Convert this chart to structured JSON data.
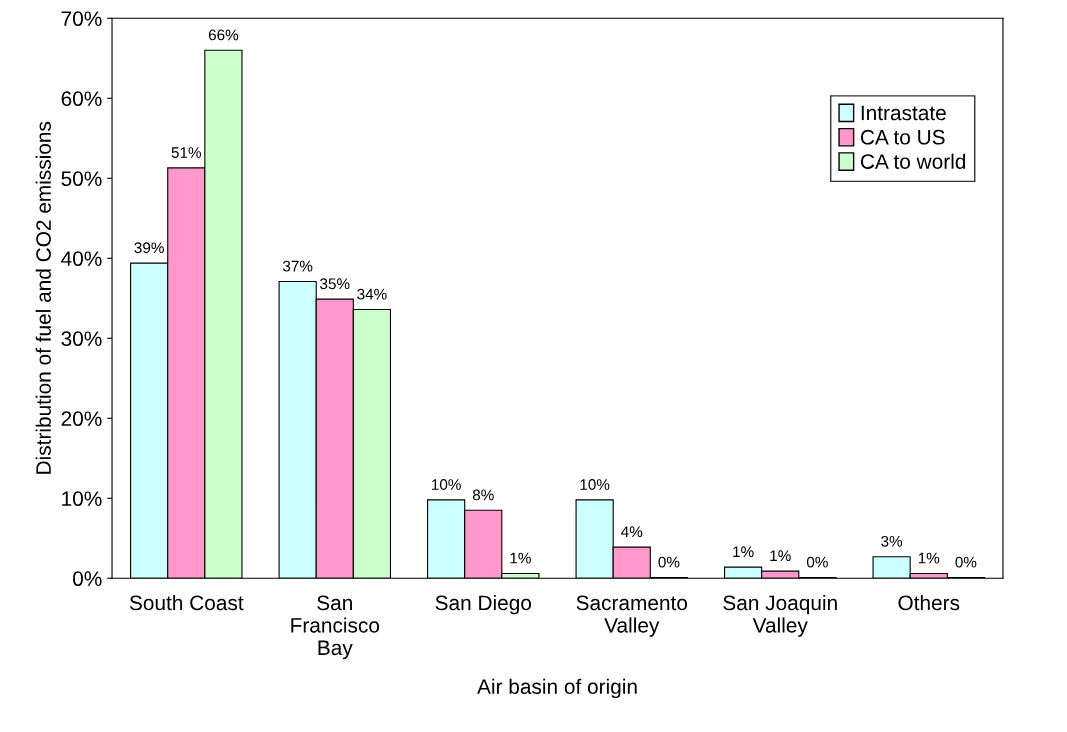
{
  "chart_data": {
    "type": "bar",
    "xlabel": "Air basin of origin",
    "ylabel": "Distribution of fuel and CO2 emissions",
    "categories": [
      "South Coast",
      "San\nFrancisco\nBay",
      "San Diego",
      "Sacramento\nValley",
      "San Joaquin\nValley",
      "Others"
    ],
    "series": [
      {
        "name": "Intrastate",
        "color": "#ccffff",
        "values": [
          39.4,
          37.1,
          9.8,
          9.8,
          1.4,
          2.7
        ],
        "value_labels": [
          "39%",
          "37%",
          "10%",
          "10%",
          "1%",
          "3%"
        ]
      },
      {
        "name": "CA to US",
        "color": "#ff99cc",
        "values": [
          51.3,
          34.9,
          8.5,
          3.9,
          0.9,
          0.6
        ],
        "value_labels": [
          "51%",
          "35%",
          "8%",
          "4%",
          "1%",
          "1%"
        ]
      },
      {
        "name": "CA to world",
        "color": "#ccffcc",
        "values": [
          66.0,
          33.6,
          0.6,
          0.1,
          0.1,
          0.1
        ],
        "value_labels": [
          "66%",
          "34%",
          "1%",
          "0%",
          "0%",
          "0%"
        ]
      }
    ],
    "ylim": [
      0,
      70
    ],
    "yticks": [
      {
        "value": 0,
        "label": "0%"
      },
      {
        "value": 10,
        "label": "10%"
      },
      {
        "value": 20,
        "label": "20%"
      },
      {
        "value": 30,
        "label": "30%"
      },
      {
        "value": 40,
        "label": "40%"
      },
      {
        "value": 50,
        "label": "50%"
      },
      {
        "value": 60,
        "label": "60%"
      },
      {
        "value": 70,
        "label": "70%"
      }
    ],
    "grid": false,
    "legend": "top right"
  }
}
